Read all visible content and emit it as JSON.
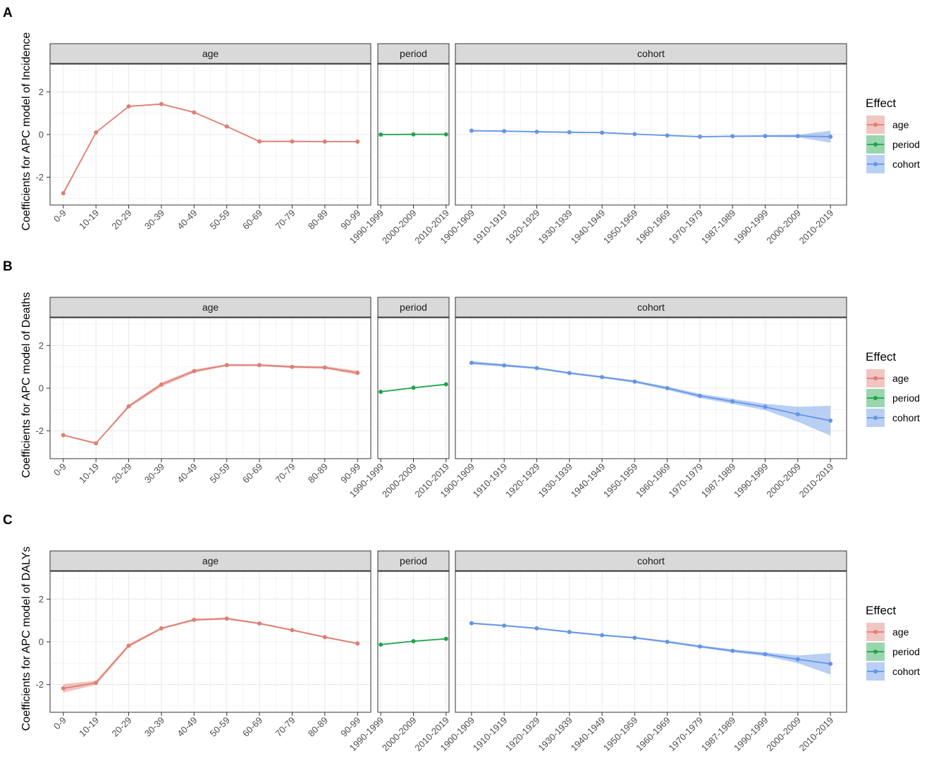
{
  "colors": {
    "age": "#E07E73",
    "period": "#1FA34A",
    "cohort": "#6495E6"
  },
  "legend": {
    "title": "Effect",
    "items": [
      "age",
      "period",
      "cohort"
    ]
  },
  "chart_data": [
    {
      "type": "line",
      "panel_label": "A",
      "ylabel": "Coefficients for APC model of Incidence",
      "ylim": [
        -3.3,
        3.3
      ],
      "yticks": [
        -2,
        0,
        2
      ],
      "grid": true,
      "legend_position": "right",
      "facets": [
        {
          "key": "age",
          "label": "age",
          "categories": [
            "0-9",
            "10-19",
            "20-29",
            "30-39",
            "40-49",
            "50-59",
            "60-69",
            "70-79",
            "80-89",
            "90-99"
          ],
          "values": [
            -2.75,
            0.1,
            1.32,
            1.43,
            1.04,
            0.38,
            -0.32,
            -0.32,
            -0.33,
            -0.33
          ],
          "ci_half": [
            0.08,
            0.03,
            0.03,
            0.03,
            0.03,
            0.03,
            0.03,
            0.03,
            0.03,
            0.03
          ]
        },
        {
          "key": "period",
          "label": "period",
          "categories": [
            "1990-1999",
            "2000-2009",
            "2010-2019"
          ],
          "values": [
            0.0,
            0.01,
            0.01
          ],
          "ci_half": [
            0.02,
            0.02,
            0.02
          ]
        },
        {
          "key": "cohort",
          "label": "cohort",
          "categories": [
            "1900-1909",
            "1910-1919",
            "1920-1929",
            "1930-1939",
            "1940-1949",
            "1950-1959",
            "1960-1969",
            "1970-1979",
            "1987-1989",
            "1990-1999",
            "2000-2009",
            "2010-2019"
          ],
          "values": [
            0.18,
            0.16,
            0.13,
            0.11,
            0.09,
            0.02,
            -0.04,
            -0.1,
            -0.08,
            -0.07,
            -0.07,
            -0.1
          ],
          "ci_half": [
            0.03,
            0.03,
            0.03,
            0.03,
            0.03,
            0.03,
            0.03,
            0.03,
            0.03,
            0.04,
            0.06,
            0.28
          ]
        }
      ]
    },
    {
      "type": "line",
      "panel_label": "B",
      "ylabel": "Coefficients for APC model of Deaths",
      "ylim": [
        -3.3,
        3.3
      ],
      "yticks": [
        -2,
        0,
        2
      ],
      "grid": true,
      "legend_position": "right",
      "facets": [
        {
          "key": "age",
          "label": "age",
          "categories": [
            "0-9",
            "10-19",
            "20-29",
            "30-39",
            "40-49",
            "50-59",
            "60-69",
            "70-79",
            "80-89",
            "90-99"
          ],
          "values": [
            -2.2,
            -2.58,
            -0.85,
            0.17,
            0.8,
            1.08,
            1.08,
            1.0,
            0.97,
            0.72
          ],
          "ci_half": [
            0.03,
            0.04,
            0.08,
            0.1,
            0.08,
            0.05,
            0.05,
            0.06,
            0.06,
            0.1
          ]
        },
        {
          "key": "period",
          "label": "period",
          "categories": [
            "1990-1999",
            "2000-2009",
            "2010-2019"
          ],
          "values": [
            -0.17,
            0.02,
            0.18
          ],
          "ci_half": [
            0.02,
            0.02,
            0.02
          ]
        },
        {
          "key": "cohort",
          "label": "cohort",
          "categories": [
            "1900-1909",
            "1910-1919",
            "1920-1929",
            "1930-1939",
            "1940-1949",
            "1950-1959",
            "1960-1969",
            "1970-1979",
            "1987-1989",
            "1990-1999",
            "2000-2009",
            "2010-2019"
          ],
          "values": [
            1.19,
            1.07,
            0.94,
            0.71,
            0.52,
            0.31,
            0.0,
            -0.36,
            -0.62,
            -0.88,
            -1.22,
            -1.52
          ],
          "ci_half": [
            0.08,
            0.06,
            0.05,
            0.05,
            0.05,
            0.06,
            0.08,
            0.1,
            0.12,
            0.15,
            0.35,
            0.7
          ]
        }
      ]
    },
    {
      "type": "line",
      "panel_label": "C",
      "ylabel": "Coefficients for APC model of DALYs",
      "ylim": [
        -3.3,
        3.3
      ],
      "yticks": [
        -2,
        0,
        2
      ],
      "grid": true,
      "legend_position": "right",
      "facets": [
        {
          "key": "age",
          "label": "age",
          "categories": [
            "0-9",
            "10-19",
            "20-29",
            "30-39",
            "40-49",
            "50-59",
            "60-69",
            "70-79",
            "80-89",
            "90-99"
          ],
          "values": [
            -2.18,
            -1.92,
            -0.18,
            0.63,
            1.03,
            1.09,
            0.86,
            0.55,
            0.22,
            -0.08
          ],
          "ci_half": [
            0.2,
            0.1,
            0.08,
            0.05,
            0.05,
            0.05,
            0.04,
            0.04,
            0.04,
            0.04
          ]
        },
        {
          "key": "period",
          "label": "period",
          "categories": [
            "1990-1999",
            "2000-2009",
            "2010-2019"
          ],
          "values": [
            -0.13,
            0.03,
            0.14
          ],
          "ci_half": [
            0.02,
            0.02,
            0.02
          ]
        },
        {
          "key": "cohort",
          "label": "cohort",
          "categories": [
            "1900-1909",
            "1910-1919",
            "1920-1929",
            "1930-1939",
            "1940-1949",
            "1950-1959",
            "1960-1969",
            "1970-1979",
            "1987-1989",
            "1990-1999",
            "2000-2009",
            "2010-2019"
          ],
          "values": [
            0.87,
            0.76,
            0.63,
            0.46,
            0.31,
            0.19,
            0.0,
            -0.22,
            -0.42,
            -0.58,
            -0.82,
            -1.03
          ],
          "ci_half": [
            0.04,
            0.04,
            0.04,
            0.04,
            0.04,
            0.04,
            0.05,
            0.06,
            0.07,
            0.09,
            0.18,
            0.5
          ]
        }
      ]
    }
  ]
}
